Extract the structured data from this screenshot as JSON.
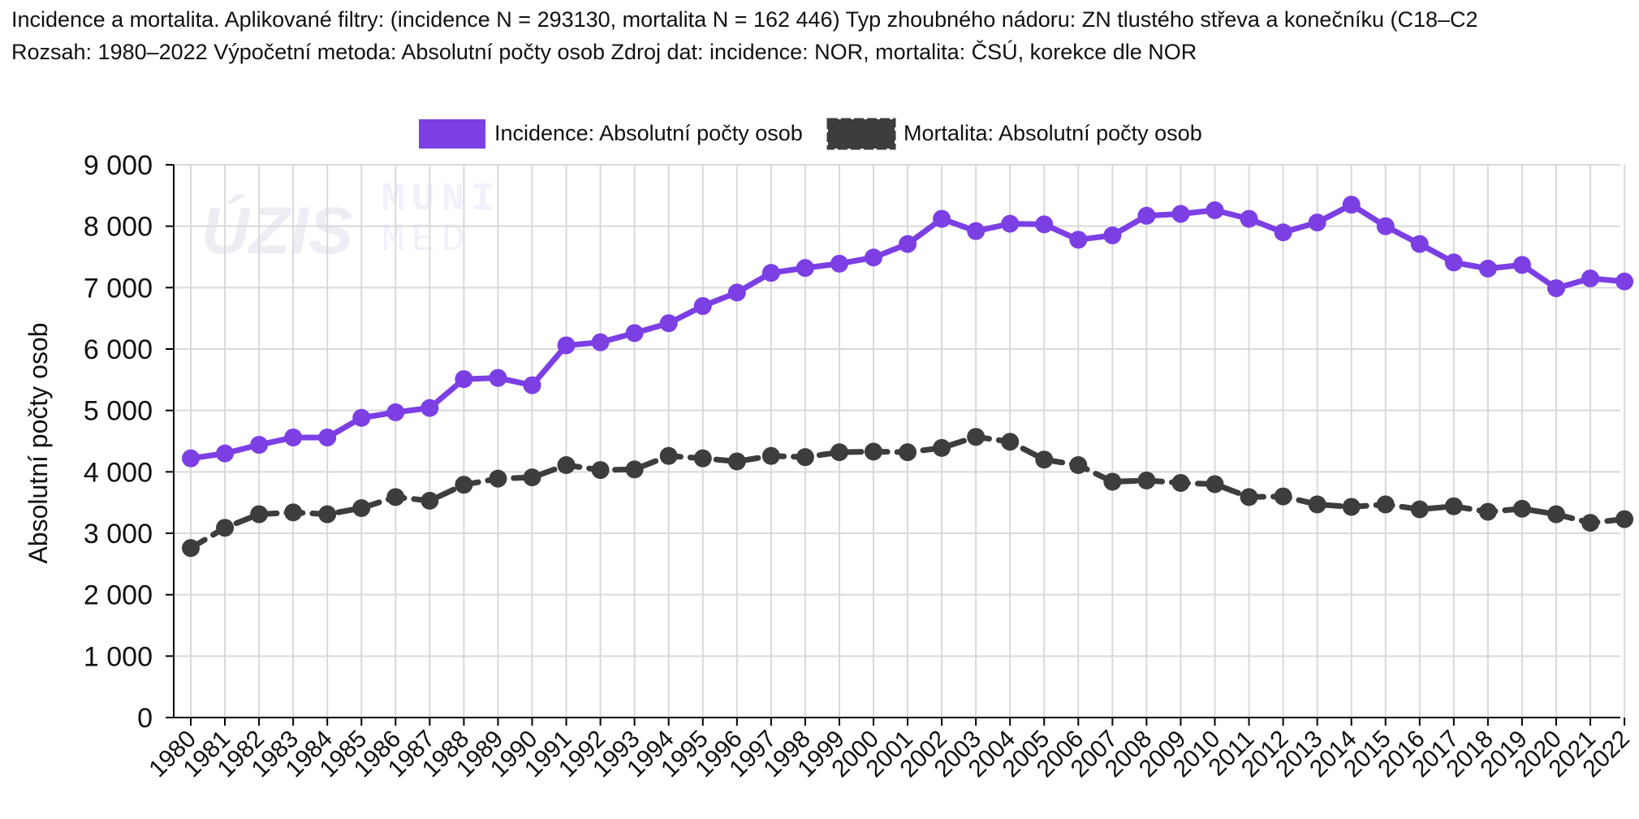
{
  "header": {
    "line1": "Incidence a mortalita. Aplikované filtry: (incidence N = 293130, mortalita N = 162 446) Typ zhoubného nádoru: ZN tlustého střeva a konečníku (C18–C2",
    "line2": "Rozsah: 1980–2022 Výpočetní metoda: Absolutní počty osob Zdroj dat: incidence: NOR, mortalita: ČSÚ, korekce dle NOR"
  },
  "watermark": {
    "logo1": "ÚZIS",
    "logo2_top": "MUNI",
    "logo2_bottom": "MED"
  },
  "colors": {
    "incidence": "#7b3fe4",
    "mortalita": "#3d3d3d",
    "grid": "#d9d9d9",
    "axis": "#000000"
  },
  "chart_data": {
    "type": "line",
    "title": "",
    "xlabel": "",
    "ylabel": "Absolutní počty osob",
    "ylim": [
      0,
      9000
    ],
    "yticks": [
      0,
      1000,
      2000,
      3000,
      4000,
      5000,
      6000,
      7000,
      8000,
      9000
    ],
    "ytick_labels": [
      "0",
      "1 000",
      "2 000",
      "3 000",
      "4 000",
      "5 000",
      "6 000",
      "7 000",
      "8 000",
      "9 000"
    ],
    "grid": true,
    "legend_position": "top-center",
    "x": [
      "1980",
      "1981",
      "1982",
      "1983",
      "1984",
      "1985",
      "1986",
      "1987",
      "1988",
      "1989",
      "1990",
      "1991",
      "1992",
      "1993",
      "1994",
      "1995",
      "1996",
      "1997",
      "1998",
      "1999",
      "2000",
      "2001",
      "2002",
      "2003",
      "2004",
      "2005",
      "2006",
      "2007",
      "2008",
      "2009",
      "2010",
      "2011",
      "2012",
      "2013",
      "2014",
      "2015",
      "2016",
      "2017",
      "2018",
      "2019",
      "2020",
      "2021",
      "2022"
    ],
    "series": [
      {
        "name": "Incidence: Absolutní počty osob",
        "style": "solid",
        "values": [
          4220,
          4300,
          4440,
          4560,
          4560,
          4880,
          4970,
          5040,
          5510,
          5530,
          5410,
          6060,
          6110,
          6260,
          6420,
          6700,
          6920,
          7240,
          7320,
          7390,
          7490,
          7710,
          8120,
          7920,
          8040,
          8030,
          7780,
          7850,
          8170,
          8200,
          8260,
          8120,
          7900,
          8060,
          8350,
          8000,
          7710,
          7410,
          7310,
          7370,
          6990,
          7150,
          7100
        ]
      },
      {
        "name": "Mortalita: Absolutní počty osob",
        "style": "dashed",
        "values": [
          2760,
          3090,
          3310,
          3340,
          3310,
          3410,
          3590,
          3530,
          3790,
          3890,
          3910,
          4110,
          4030,
          4040,
          4260,
          4220,
          4170,
          4260,
          4240,
          4320,
          4330,
          4320,
          4390,
          4570,
          4490,
          4200,
          4110,
          3840,
          3860,
          3820,
          3800,
          3590,
          3600,
          3470,
          3430,
          3470,
          3390,
          3440,
          3350,
          3400,
          3310,
          3170,
          3230
        ]
      }
    ]
  }
}
